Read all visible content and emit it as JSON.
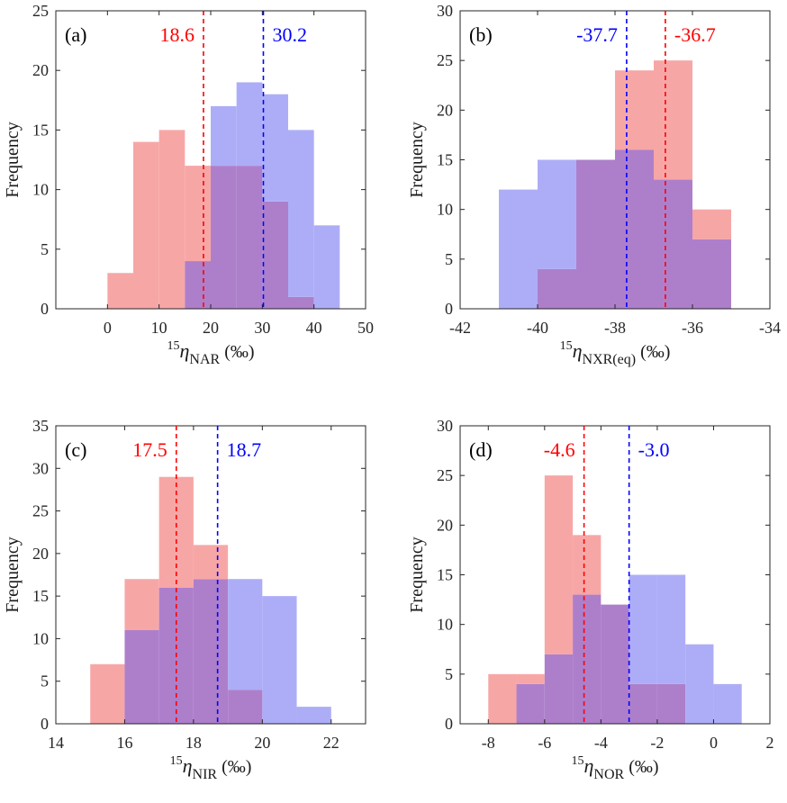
{
  "figure": {
    "series_colors": {
      "red": "#ff0000",
      "blue": "#0000ff"
    },
    "bar_fill": {
      "red": "#f7a6a6",
      "blue": "#adadf7",
      "overlap": "#ad7fcb"
    }
  },
  "chart_data": [
    {
      "type": "histogram",
      "panel_label": "(a)",
      "ylabel": "Frequency",
      "xlabel": {
        "sup": "15",
        "symbol": "η",
        "sub": "NAR",
        "unit": "(‰)"
      },
      "xlim": [
        -10,
        50
      ],
      "ylim": [
        0,
        25
      ],
      "xticks": [
        0,
        10,
        20,
        30,
        40,
        50
      ],
      "yticks": [
        0,
        5,
        10,
        15,
        20,
        25
      ],
      "bin_width": 5,
      "series": [
        {
          "name": "red",
          "bin_starts": [
            0,
            5,
            10,
            15,
            20,
            25,
            30,
            35
          ],
          "counts": [
            3,
            14,
            15,
            12,
            12,
            12,
            9,
            1
          ]
        },
        {
          "name": "blue",
          "bin_starts": [
            15,
            20,
            25,
            30,
            35,
            40
          ],
          "counts": [
            4,
            17,
            19,
            18,
            15,
            7
          ]
        }
      ],
      "means": [
        {
          "series": "red",
          "value": 18.6,
          "label": "18.6",
          "side": "left"
        },
        {
          "series": "blue",
          "value": 30.2,
          "label": "30.2",
          "side": "right"
        }
      ]
    },
    {
      "type": "histogram",
      "panel_label": "(b)",
      "ylabel": "Frequency",
      "xlabel": {
        "sup": "15",
        "symbol": "η",
        "sub": "NXR(eq)",
        "unit": "(‰)"
      },
      "xlim": [
        -42,
        -34
      ],
      "ylim": [
        0,
        30
      ],
      "xticks": [
        -42,
        -40,
        -38,
        -36,
        -34
      ],
      "yticks": [
        0,
        5,
        10,
        15,
        20,
        25,
        30
      ],
      "bin_width": 1,
      "series": [
        {
          "name": "red",
          "bin_starts": [
            -40,
            -39,
            -38,
            -37,
            -36
          ],
          "counts": [
            4,
            15,
            24,
            25,
            10
          ]
        },
        {
          "name": "blue",
          "bin_starts": [
            -41,
            -40,
            -39,
            -38,
            -37,
            -36
          ],
          "counts": [
            12,
            15,
            15,
            16,
            13,
            7
          ]
        }
      ],
      "means": [
        {
          "series": "blue",
          "value": -37.7,
          "label": "-37.7",
          "side": "left"
        },
        {
          "series": "red",
          "value": -36.7,
          "label": "-36.7",
          "side": "right"
        }
      ]
    },
    {
      "type": "histogram",
      "panel_label": "(c)",
      "ylabel": "Frequency",
      "xlabel": {
        "sup": "15",
        "symbol": "η",
        "sub": "NIR",
        "unit": "(‰)"
      },
      "xlim": [
        14,
        23
      ],
      "ylim": [
        0,
        35
      ],
      "xticks": [
        14,
        16,
        18,
        20,
        22
      ],
      "yticks": [
        0,
        5,
        10,
        15,
        20,
        25,
        30,
        35
      ],
      "bin_width": 1,
      "series": [
        {
          "name": "red",
          "bin_starts": [
            15,
            16,
            17,
            18,
            19
          ],
          "counts": [
            7,
            17,
            29,
            21,
            4
          ]
        },
        {
          "name": "blue",
          "bin_starts": [
            16,
            17,
            18,
            19,
            20,
            21
          ],
          "counts": [
            11,
            16,
            17,
            17,
            15,
            2
          ]
        }
      ],
      "means": [
        {
          "series": "red",
          "value": 17.5,
          "label": "17.5",
          "side": "left"
        },
        {
          "series": "blue",
          "value": 18.7,
          "label": "18.7",
          "side": "right"
        }
      ]
    },
    {
      "type": "histogram",
      "panel_label": "(d)",
      "ylabel": "Frequency",
      "xlabel": {
        "sup": "15",
        "symbol": "η",
        "sub": "NOR",
        "unit": "(‰)"
      },
      "xlim": [
        -9,
        2
      ],
      "ylim": [
        0,
        30
      ],
      "xticks": [
        -8,
        -6,
        -4,
        -2,
        0,
        2
      ],
      "yticks": [
        0,
        5,
        10,
        15,
        20,
        25,
        30
      ],
      "bin_width": 1,
      "series": [
        {
          "name": "red",
          "bin_starts": [
            -8,
            -7,
            -6,
            -5,
            -4,
            -3,
            -2
          ],
          "counts": [
            5,
            5,
            25,
            19,
            12,
            4,
            4
          ]
        },
        {
          "name": "blue",
          "bin_starts": [
            -7,
            -6,
            -5,
            -4,
            -3,
            -2,
            -1,
            0
          ],
          "counts": [
            4,
            7,
            13,
            12,
            15,
            15,
            8,
            4
          ]
        }
      ],
      "means": [
        {
          "series": "red",
          "value": -4.6,
          "label": "-4.6",
          "side": "left"
        },
        {
          "series": "blue",
          "value": -3.0,
          "label": "-3.0",
          "side": "right"
        }
      ]
    }
  ]
}
